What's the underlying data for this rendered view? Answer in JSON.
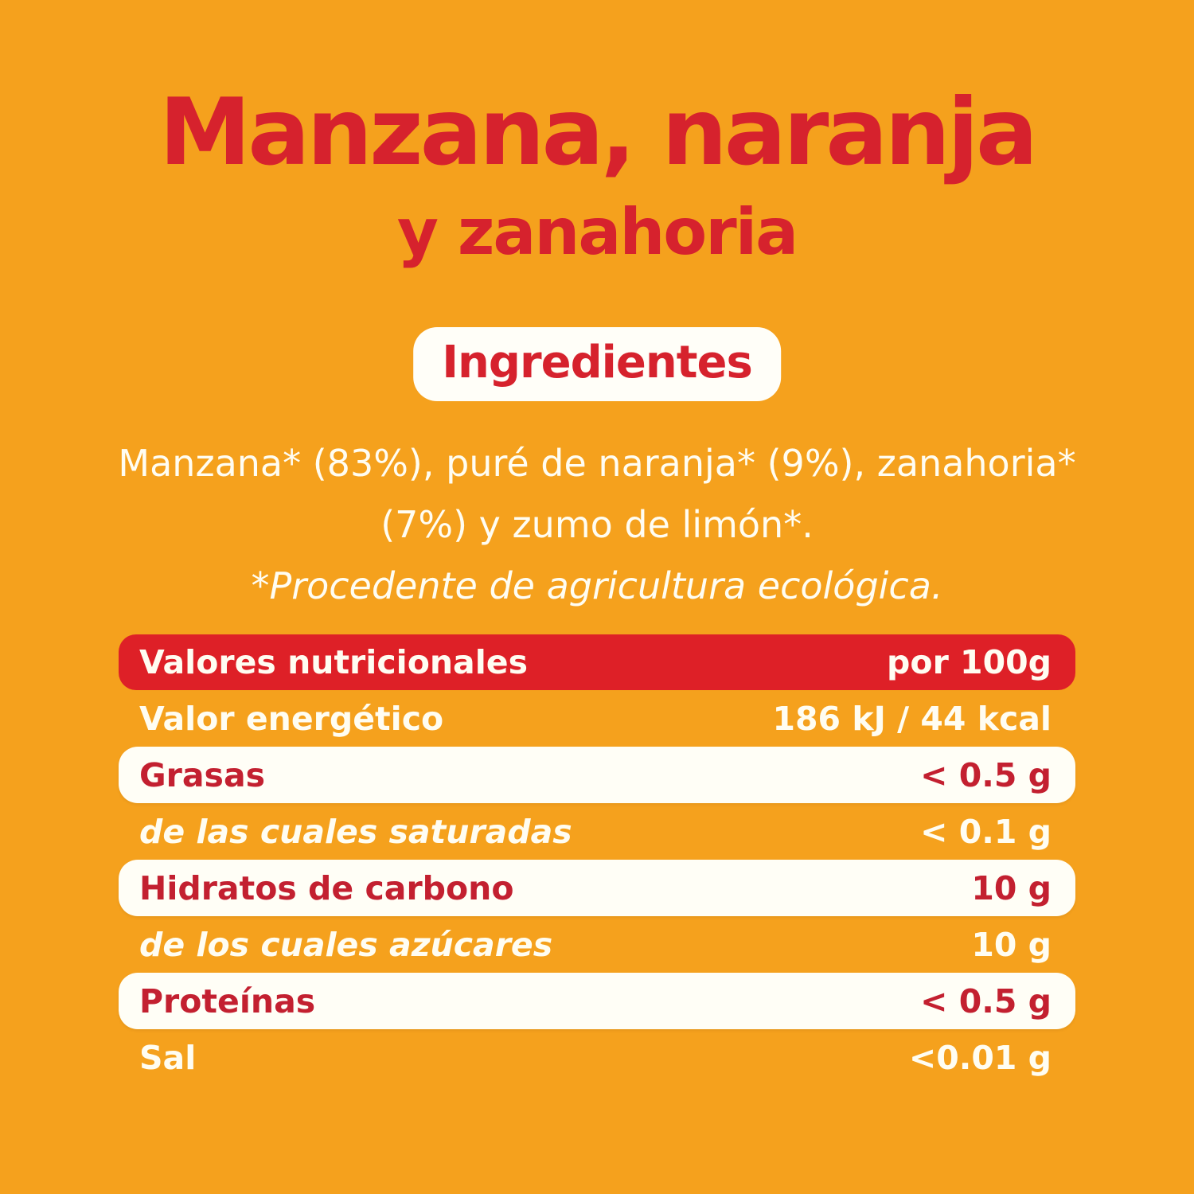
{
  "page": {
    "background_color": "#f5a11d",
    "accent_red": "#d6222d",
    "bar_red": "#de2027",
    "table_text_red": "#c32030",
    "warm_white": "#fffdf2"
  },
  "title": {
    "line1": "Manzana, naranja",
    "line2": "y zanahoria"
  },
  "ingredients": {
    "badge_label": "Ingredientes",
    "line1": "Manzana* (83%), puré de naranja* (9%), zanahoria*",
    "line2": "(7%) y zumo de limón*.",
    "note": "*Procedente de agricultura ecológica."
  },
  "nutrition_table": {
    "header": {
      "label": "Valores nutricionales",
      "value": "por 100g"
    },
    "rows": [
      {
        "label": "Valor energético",
        "value": "186 kJ / 44 kcal",
        "style": "orange"
      },
      {
        "label": "Grasas",
        "value": "< 0.5 g",
        "style": "white"
      },
      {
        "label": "de las cuales saturadas",
        "value": "< 0.1 g",
        "style": "orange sub"
      },
      {
        "label": "Hidratos de carbono",
        "value": "10 g",
        "style": "white"
      },
      {
        "label": "de los cuales azúcares",
        "value": "10 g",
        "style": "orange sub"
      },
      {
        "label": "Proteínas",
        "value": "< 0.5 g",
        "style": "white"
      },
      {
        "label": "Sal",
        "value": "<0.01 g",
        "style": "orange"
      }
    ]
  }
}
